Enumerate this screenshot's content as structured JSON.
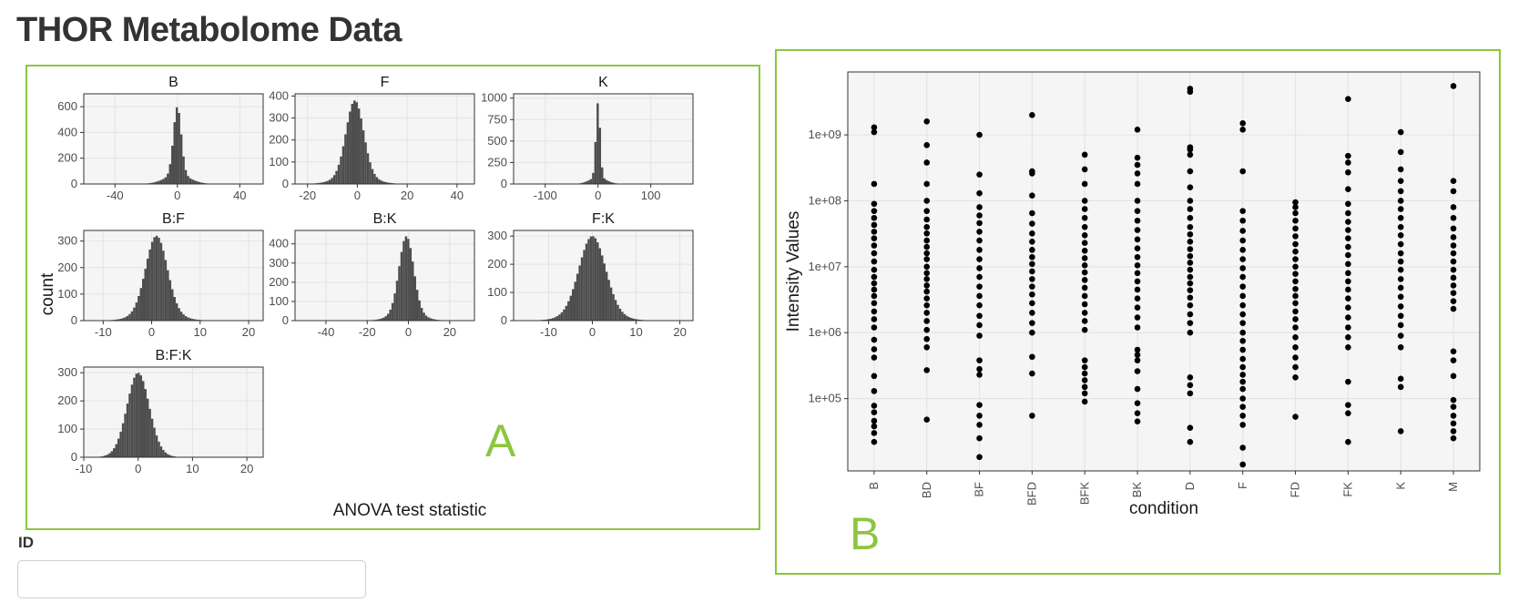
{
  "page": {
    "title": "THOR Metabolome Data",
    "id_field": {
      "label": "ID",
      "value": "",
      "placeholder": ""
    }
  },
  "panel_a": {
    "letter": "A"
  },
  "panel_b": {
    "letter": "B"
  },
  "colors": {
    "accent": "#8cc63f",
    "bars": "#4d4d4d",
    "points": "#000000",
    "plot_bg": "#f5f5f5"
  },
  "chart_data": [
    {
      "type": "bar",
      "kind": "faceted histogram",
      "xlabel": "ANOVA test statistic",
      "ylabel": "count",
      "facets": [
        {
          "title": "B",
          "xticks": [
            -40,
            0,
            40
          ],
          "xlim": [
            -60,
            55
          ],
          "yticks": [
            0,
            200,
            400,
            600
          ],
          "ylim": [
            0,
            700
          ],
          "peak": {
            "center": 0,
            "sigma": 2.5,
            "max": 600,
            "tail_sigma": 8,
            "tail_frac": 0.12
          }
        },
        {
          "title": "F",
          "xticks": [
            -20,
            0,
            20,
            40
          ],
          "xlim": [
            -25,
            47
          ],
          "yticks": [
            0,
            100,
            200,
            300,
            400
          ],
          "ylim": [
            0,
            410
          ],
          "peak": {
            "center": -1,
            "sigma": 3.5,
            "max": 380,
            "tail_sigma": 7,
            "tail_frac": 0.1
          }
        },
        {
          "title": "K",
          "xticks": [
            -100,
            0,
            100
          ],
          "xlim": [
            -160,
            180
          ],
          "yticks": [
            0,
            250,
            500,
            750,
            1000
          ],
          "ylim": [
            0,
            1050
          ],
          "peak": {
            "center": 0,
            "sigma": 4,
            "max": 950,
            "tail_sigma": 16,
            "tail_frac": 0.08
          }
        },
        {
          "title": "B:F",
          "xticks": [
            -10,
            0,
            10,
            20
          ],
          "xlim": [
            -14,
            23
          ],
          "yticks": [
            0,
            100,
            200,
            300
          ],
          "ylim": [
            0,
            340
          ],
          "peak": {
            "center": 1,
            "sigma": 2.2,
            "max": 320,
            "tail_sigma": 4,
            "tail_frac": 0.1
          }
        },
        {
          "title": "B:K",
          "xticks": [
            -40,
            -20,
            0,
            20
          ],
          "xlim": [
            -55,
            32
          ],
          "yticks": [
            0,
            100,
            200,
            300,
            400
          ],
          "ylim": [
            0,
            470
          ],
          "peak": {
            "center": -1,
            "sigma": 3.5,
            "max": 440,
            "tail_sigma": 7,
            "tail_frac": 0.1
          }
        },
        {
          "title": "F:K",
          "xticks": [
            -10,
            0,
            10,
            20
          ],
          "xlim": [
            -18,
            23
          ],
          "yticks": [
            0,
            100,
            200,
            300
          ],
          "ylim": [
            0,
            320
          ],
          "peak": {
            "center": 0,
            "sigma": 3,
            "max": 300,
            "tail_sigma": 5,
            "tail_frac": 0.1
          }
        },
        {
          "title": "B:F:K",
          "xticks": [
            -10,
            0,
            10,
            20
          ],
          "xlim": [
            -10,
            23
          ],
          "yticks": [
            0,
            100,
            200,
            300
          ],
          "ylim": [
            0,
            320
          ],
          "peak": {
            "center": 0,
            "sigma": 2,
            "max": 300,
            "tail_sigma": 3,
            "tail_frac": 0.08
          }
        }
      ]
    },
    {
      "type": "scatter",
      "kind": "strip plot",
      "xlabel": "condition",
      "ylabel": "Intensity Values",
      "y_scale": "log10",
      "ylim": [
        8000,
        9000000000
      ],
      "ytick_labels": [
        "1e+05",
        "1e+06",
        "1e+07",
        "1e+08",
        "1e+09"
      ],
      "grid": true,
      "categories": [
        "B",
        "BD",
        "BF",
        "BFD",
        "BFK",
        "BK",
        "D",
        "F",
        "FD",
        "FK",
        "K",
        "M"
      ],
      "values": [
        [
          22000,
          30000,
          38000,
          46000,
          62000,
          78000,
          130000,
          220000,
          420000,
          560000,
          780000,
          1200000,
          1600000,
          2100000,
          2800000,
          3600000,
          4500000,
          5600000,
          7000000,
          9000000,
          12000000,
          16000000,
          21000000,
          27000000,
          34000000,
          43000000,
          55000000,
          70000000,
          90000000,
          180000000,
          1100000000,
          1300000000
        ],
        [
          48000,
          270000,
          600000,
          800000,
          1100000,
          1500000,
          2000000,
          2600000,
          3300000,
          4200000,
          5200000,
          6500000,
          8000000,
          10000000,
          13000000,
          16000000,
          20000000,
          25000000,
          32000000,
          40000000,
          52000000,
          70000000,
          100000000,
          180000000,
          380000000,
          700000000,
          1600000000
        ],
        [
          13000,
          25000,
          40000,
          55000,
          80000,
          230000,
          280000,
          380000,
          900000,
          1300000,
          1800000,
          2600000,
          3600000,
          5000000,
          7000000,
          9500000,
          13000000,
          18000000,
          25000000,
          34000000,
          46000000,
          60000000,
          80000000,
          130000000,
          250000000,
          1000000000
        ],
        [
          55000,
          240000,
          430000,
          1000000,
          1400000,
          2000000,
          2800000,
          3800000,
          5000000,
          6500000,
          8500000,
          11000000,
          14000000,
          18000000,
          24000000,
          32000000,
          45000000,
          65000000,
          120000000,
          260000000,
          280000000,
          2000000000
        ],
        [
          90000,
          120000,
          150000,
          190000,
          240000,
          300000,
          380000,
          1100000,
          1500000,
          2000000,
          2700000,
          3600000,
          4800000,
          6300000,
          8200000,
          10500000,
          13500000,
          17500000,
          23000000,
          30000000,
          40000000,
          55000000,
          75000000,
          100000000,
          180000000,
          300000000,
          500000000
        ],
        [
          45000,
          60000,
          85000,
          140000,
          260000,
          380000,
          460000,
          550000,
          1200000,
          1700000,
          2400000,
          3300000,
          4500000,
          6000000,
          8000000,
          10500000,
          14000000,
          19000000,
          26000000,
          36000000,
          50000000,
          70000000,
          100000000,
          180000000,
          260000000,
          350000000,
          450000000,
          1200000000
        ],
        [
          22000,
          36000,
          120000,
          160000,
          210000,
          1000000,
          1400000,
          1900000,
          2600000,
          3400000,
          4400000,
          5600000,
          7000000,
          9000000,
          11500000,
          14500000,
          18500000,
          24000000,
          31000000,
          40000000,
          55000000,
          75000000,
          100000000,
          160000000,
          280000000,
          500000000,
          600000000,
          650000000,
          4500000000,
          5000000000
        ],
        [
          10000,
          18000,
          40000,
          55000,
          75000,
          100000,
          140000,
          180000,
          230000,
          300000,
          400000,
          550000,
          750000,
          1000000,
          1400000,
          1900000,
          2600000,
          3600000,
          5000000,
          7000000,
          9500000,
          13000000,
          18000000,
          25000000,
          35000000,
          50000000,
          70000000,
          280000000,
          1200000000,
          1500000000
        ],
        [
          53000,
          210000,
          300000,
          420000,
          600000,
          850000,
          1200000,
          1600000,
          2100000,
          2800000,
          3600000,
          4600000,
          6000000,
          7800000,
          10000000,
          13000000,
          17000000,
          22000000,
          29000000,
          38000000,
          50000000,
          65000000,
          80000000,
          95000000
        ],
        [
          22000,
          60000,
          80000,
          180000,
          600000,
          850000,
          1200000,
          1700000,
          2400000,
          3300000,
          4500000,
          6000000,
          8000000,
          11000000,
          15000000,
          20000000,
          27000000,
          36000000,
          48000000,
          65000000,
          90000000,
          150000000,
          270000000,
          380000000,
          480000000,
          3500000000
        ],
        [
          32000,
          150000,
          200000,
          600000,
          900000,
          1300000,
          1800000,
          2500000,
          3500000,
          4800000,
          6500000,
          9000000,
          12000000,
          16000000,
          22000000,
          30000000,
          40000000,
          55000000,
          75000000,
          100000000,
          140000000,
          200000000,
          300000000,
          550000000,
          1100000000
        ],
        [
          25000,
          32000,
          42000,
          55000,
          75000,
          95000,
          220000,
          380000,
          520000,
          2300000,
          3000000,
          4000000,
          5200000,
          6800000,
          9000000,
          12000000,
          16000000,
          21000000,
          28000000,
          38000000,
          55000000,
          80000000,
          140000000,
          200000000,
          5500000000
        ]
      ]
    }
  ]
}
